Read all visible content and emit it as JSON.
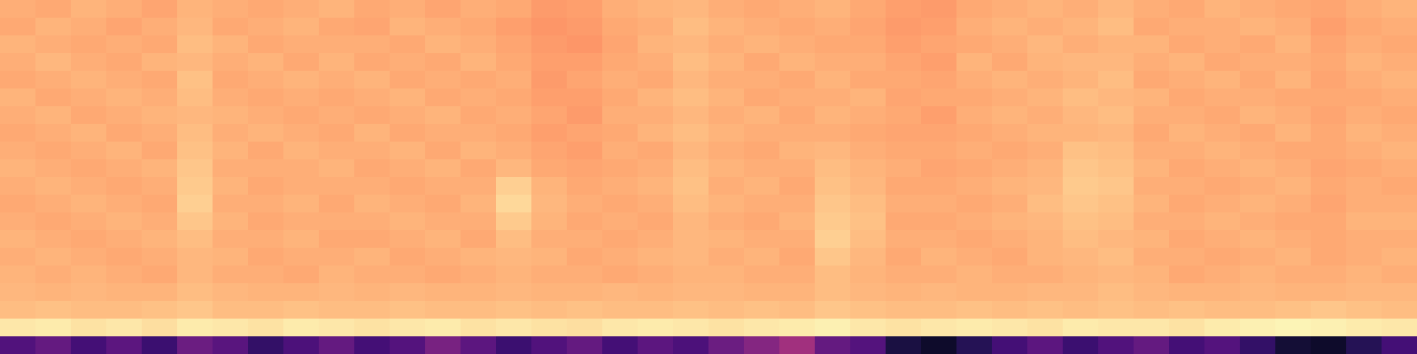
{
  "chart_data": {
    "type": "heatmap",
    "color": "magma",
    "zlim": [
      0,
      1
    ],
    "tick_labels": false,
    "cells": [
      [
        0.83,
        0.82,
        0.84,
        0.83,
        0.81,
        0.84,
        0.83,
        0.82,
        0.83,
        0.84,
        0.82,
        0.83,
        0.81,
        0.83,
        0.82,
        0.79,
        0.8,
        0.83,
        0.84,
        0.85,
        0.83,
        0.82,
        0.83,
        0.84,
        0.82,
        0.8,
        0.79,
        0.82,
        0.83,
        0.84,
        0.83,
        0.85,
        0.83,
        0.82,
        0.84,
        0.83,
        0.82,
        0.81,
        0.83,
        0.84
      ],
      [
        0.82,
        0.84,
        0.83,
        0.81,
        0.83,
        0.85,
        0.82,
        0.83,
        0.84,
        0.82,
        0.81,
        0.84,
        0.83,
        0.82,
        0.8,
        0.78,
        0.79,
        0.82,
        0.83,
        0.86,
        0.84,
        0.83,
        0.82,
        0.83,
        0.81,
        0.79,
        0.8,
        0.83,
        0.84,
        0.83,
        0.84,
        0.86,
        0.82,
        0.83,
        0.83,
        0.84,
        0.83,
        0.8,
        0.82,
        0.83
      ],
      [
        0.84,
        0.83,
        0.82,
        0.83,
        0.82,
        0.86,
        0.84,
        0.82,
        0.83,
        0.83,
        0.83,
        0.82,
        0.84,
        0.83,
        0.81,
        0.79,
        0.78,
        0.81,
        0.84,
        0.85,
        0.83,
        0.84,
        0.83,
        0.82,
        0.82,
        0.8,
        0.81,
        0.82,
        0.83,
        0.85,
        0.83,
        0.84,
        0.84,
        0.82,
        0.83,
        0.82,
        0.84,
        0.81,
        0.83,
        0.82
      ],
      [
        0.83,
        0.85,
        0.83,
        0.82,
        0.84,
        0.85,
        0.83,
        0.84,
        0.82,
        0.84,
        0.82,
        0.83,
        0.82,
        0.84,
        0.82,
        0.8,
        0.8,
        0.82,
        0.83,
        0.86,
        0.84,
        0.82,
        0.84,
        0.83,
        0.83,
        0.81,
        0.8,
        0.84,
        0.82,
        0.84,
        0.85,
        0.85,
        0.83,
        0.84,
        0.82,
        0.83,
        0.83,
        0.82,
        0.84,
        0.83
      ],
      [
        0.82,
        0.83,
        0.84,
        0.83,
        0.82,
        0.87,
        0.82,
        0.83,
        0.84,
        0.83,
        0.84,
        0.82,
        0.83,
        0.82,
        0.83,
        0.79,
        0.81,
        0.83,
        0.82,
        0.85,
        0.83,
        0.83,
        0.82,
        0.84,
        0.82,
        0.82,
        0.81,
        0.83,
        0.84,
        0.83,
        0.84,
        0.86,
        0.82,
        0.83,
        0.84,
        0.82,
        0.84,
        0.81,
        0.83,
        0.84
      ],
      [
        0.84,
        0.82,
        0.83,
        0.84,
        0.83,
        0.86,
        0.83,
        0.82,
        0.83,
        0.82,
        0.83,
        0.84,
        0.82,
        0.83,
        0.82,
        0.8,
        0.8,
        0.82,
        0.84,
        0.86,
        0.84,
        0.82,
        0.83,
        0.83,
        0.84,
        0.81,
        0.82,
        0.82,
        0.83,
        0.84,
        0.86,
        0.85,
        0.84,
        0.82,
        0.83,
        0.83,
        0.82,
        0.82,
        0.82,
        0.83
      ],
      [
        0.83,
        0.84,
        0.82,
        0.83,
        0.84,
        0.85,
        0.84,
        0.83,
        0.82,
        0.83,
        0.82,
        0.83,
        0.84,
        0.82,
        0.83,
        0.81,
        0.79,
        0.83,
        0.83,
        0.85,
        0.83,
        0.84,
        0.82,
        0.84,
        0.83,
        0.82,
        0.8,
        0.83,
        0.84,
        0.83,
        0.85,
        0.86,
        0.83,
        0.83,
        0.82,
        0.84,
        0.83,
        0.81,
        0.83,
        0.82
      ],
      [
        0.82,
        0.83,
        0.84,
        0.82,
        0.83,
        0.86,
        0.83,
        0.84,
        0.83,
        0.82,
        0.84,
        0.82,
        0.83,
        0.83,
        0.82,
        0.8,
        0.81,
        0.82,
        0.84,
        0.86,
        0.84,
        0.83,
        0.83,
        0.83,
        0.82,
        0.81,
        0.81,
        0.82,
        0.83,
        0.84,
        0.84,
        0.85,
        0.82,
        0.84,
        0.83,
        0.82,
        0.84,
        0.82,
        0.84,
        0.83
      ],
      [
        0.83,
        0.82,
        0.83,
        0.84,
        0.82,
        0.87,
        0.84,
        0.82,
        0.84,
        0.83,
        0.83,
        0.84,
        0.82,
        0.84,
        0.83,
        0.81,
        0.8,
        0.83,
        0.82,
        0.85,
        0.83,
        0.82,
        0.84,
        0.85,
        0.83,
        0.82,
        0.82,
        0.83,
        0.82,
        0.83,
        0.87,
        0.86,
        0.83,
        0.83,
        0.84,
        0.83,
        0.82,
        0.82,
        0.83,
        0.84
      ],
      [
        0.84,
        0.83,
        0.82,
        0.83,
        0.84,
        0.88,
        0.83,
        0.83,
        0.83,
        0.84,
        0.82,
        0.83,
        0.84,
        0.82,
        0.85,
        0.82,
        0.81,
        0.82,
        0.83,
        0.86,
        0.84,
        0.83,
        0.83,
        0.86,
        0.84,
        0.83,
        0.81,
        0.82,
        0.83,
        0.84,
        0.88,
        0.87,
        0.84,
        0.82,
        0.83,
        0.84,
        0.83,
        0.81,
        0.82,
        0.83
      ],
      [
        0.83,
        0.84,
        0.83,
        0.82,
        0.83,
        0.89,
        0.84,
        0.82,
        0.83,
        0.83,
        0.83,
        0.82,
        0.83,
        0.83,
        0.9,
        0.84,
        0.82,
        0.83,
        0.84,
        0.87,
        0.83,
        0.84,
        0.82,
        0.87,
        0.85,
        0.82,
        0.82,
        0.83,
        0.84,
        0.85,
        0.89,
        0.88,
        0.83,
        0.83,
        0.82,
        0.83,
        0.84,
        0.82,
        0.83,
        0.82
      ],
      [
        0.82,
        0.83,
        0.84,
        0.83,
        0.82,
        0.9,
        0.83,
        0.83,
        0.84,
        0.82,
        0.84,
        0.83,
        0.82,
        0.84,
        0.92,
        0.85,
        0.83,
        0.82,
        0.83,
        0.86,
        0.84,
        0.83,
        0.83,
        0.88,
        0.86,
        0.83,
        0.83,
        0.82,
        0.83,
        0.86,
        0.88,
        0.87,
        0.84,
        0.82,
        0.83,
        0.84,
        0.83,
        0.81,
        0.83,
        0.83
      ],
      [
        0.83,
        0.82,
        0.83,
        0.84,
        0.83,
        0.88,
        0.84,
        0.82,
        0.83,
        0.83,
        0.83,
        0.84,
        0.83,
        0.83,
        0.89,
        0.84,
        0.82,
        0.83,
        0.82,
        0.85,
        0.83,
        0.82,
        0.84,
        0.89,
        0.87,
        0.82,
        0.82,
        0.83,
        0.84,
        0.85,
        0.87,
        0.86,
        0.83,
        0.83,
        0.84,
        0.83,
        0.82,
        0.82,
        0.84,
        0.84
      ],
      [
        0.84,
        0.83,
        0.82,
        0.83,
        0.84,
        0.86,
        0.83,
        0.83,
        0.84,
        0.82,
        0.82,
        0.83,
        0.84,
        0.82,
        0.86,
        0.83,
        0.83,
        0.82,
        0.83,
        0.85,
        0.84,
        0.83,
        0.83,
        0.9,
        0.86,
        0.83,
        0.83,
        0.82,
        0.83,
        0.84,
        0.86,
        0.85,
        0.84,
        0.82,
        0.83,
        0.84,
        0.83,
        0.82,
        0.83,
        0.83
      ],
      [
        0.83,
        0.84,
        0.83,
        0.82,
        0.83,
        0.85,
        0.84,
        0.82,
        0.83,
        0.83,
        0.84,
        0.82,
        0.83,
        0.84,
        0.85,
        0.84,
        0.82,
        0.83,
        0.84,
        0.85,
        0.83,
        0.84,
        0.82,
        0.88,
        0.85,
        0.82,
        0.84,
        0.83,
        0.82,
        0.84,
        0.85,
        0.86,
        0.83,
        0.83,
        0.82,
        0.83,
        0.84,
        0.82,
        0.83,
        0.84
      ],
      [
        0.84,
        0.83,
        0.84,
        0.83,
        0.82,
        0.85,
        0.83,
        0.83,
        0.82,
        0.84,
        0.83,
        0.83,
        0.82,
        0.83,
        0.84,
        0.83,
        0.83,
        0.82,
        0.83,
        0.84,
        0.84,
        0.83,
        0.83,
        0.86,
        0.84,
        0.83,
        0.83,
        0.84,
        0.83,
        0.83,
        0.84,
        0.85,
        0.84,
        0.82,
        0.83,
        0.84,
        0.83,
        0.83,
        0.84,
        0.83
      ],
      [
        0.85,
        0.84,
        0.85,
        0.84,
        0.84,
        0.86,
        0.85,
        0.84,
        0.84,
        0.85,
        0.84,
        0.85,
        0.84,
        0.84,
        0.85,
        0.84,
        0.84,
        0.85,
        0.84,
        0.85,
        0.85,
        0.84,
        0.84,
        0.86,
        0.85,
        0.84,
        0.85,
        0.84,
        0.84,
        0.85,
        0.85,
        0.86,
        0.85,
        0.84,
        0.84,
        0.85,
        0.84,
        0.84,
        0.85,
        0.85
      ],
      [
        0.86,
        0.87,
        0.86,
        0.86,
        0.87,
        0.88,
        0.86,
        0.86,
        0.87,
        0.86,
        0.86,
        0.87,
        0.86,
        0.86,
        0.87,
        0.86,
        0.87,
        0.86,
        0.86,
        0.87,
        0.86,
        0.87,
        0.86,
        0.88,
        0.87,
        0.86,
        0.86,
        0.87,
        0.86,
        0.87,
        0.86,
        0.87,
        0.86,
        0.87,
        0.86,
        0.86,
        0.87,
        0.88,
        0.87,
        0.86
      ],
      [
        0.95,
        0.96,
        0.94,
        0.95,
        0.93,
        0.96,
        0.95,
        0.94,
        0.96,
        0.95,
        0.94,
        0.95,
        0.96,
        0.94,
        0.95,
        0.94,
        0.93,
        0.95,
        0.96,
        0.95,
        0.94,
        0.95,
        0.96,
        0.97,
        0.95,
        0.94,
        0.95,
        0.96,
        0.95,
        0.94,
        0.96,
        0.95,
        0.95,
        0.94,
        0.96,
        0.97,
        0.98,
        0.97,
        0.96,
        0.95
      ],
      [
        0.25,
        0.3,
        0.22,
        0.28,
        0.2,
        0.32,
        0.27,
        0.18,
        0.24,
        0.3,
        0.22,
        0.26,
        0.35,
        0.28,
        0.2,
        0.25,
        0.3,
        0.22,
        0.28,
        0.24,
        0.32,
        0.38,
        0.45,
        0.3,
        0.26,
        0.12,
        0.08,
        0.15,
        0.22,
        0.28,
        0.2,
        0.25,
        0.3,
        0.22,
        0.26,
        0.18,
        0.1,
        0.08,
        0.15,
        0.22
      ]
    ]
  }
}
